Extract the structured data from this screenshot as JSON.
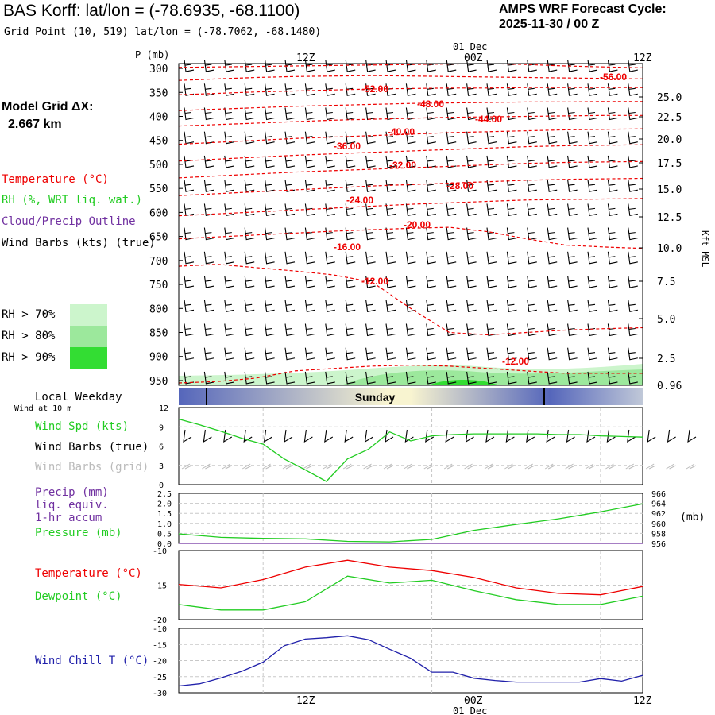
{
  "header": {
    "title": "BAS Korff:  lat/lon = (-78.6935, -68.1100)",
    "subtitle": "Grid Point (10, 519) lat/lon = (-78.7062, -68.1480)",
    "cycle_label": "AMPS WRF Forecast Cycle:",
    "cycle_value": "2025-11-30 / 00  Z"
  },
  "model_grid": {
    "label": "Model Grid ΔX:",
    "value": "2.667 km"
  },
  "legend": {
    "temperature": "Temperature (°C)",
    "rh": "RH (%, WRT liq. wat.)",
    "cloud": "Cloud/Precip Outline",
    "wind": "Wind Barbs (kts) (true)",
    "rh_levels": [
      {
        "label": "RH > 70%",
        "color": "#ccf5cc"
      },
      {
        "label": "RH > 80%",
        "color": "#9ce89c"
      },
      {
        "label": "RH > 90%",
        "color": "#33dd33"
      }
    ]
  },
  "colors": {
    "temperature": "#ee0000",
    "green": "#22cc22",
    "purple": "#7030a0",
    "grey": "#bbbbbb",
    "blue": "#2020aa",
    "weekday": "#5566bb",
    "weekday_mid": "#f8f4d0"
  },
  "time_axis": {
    "top_labels": [
      "12Z",
      "00Z",
      "12Z"
    ],
    "date_label": "01 Dec",
    "bottom_labels": [
      "12Z",
      "00Z",
      "12Z"
    ]
  },
  "weekday": {
    "label": "Local Weekday",
    "day": "Sunday",
    "wind_note": "Wind at 10 m"
  },
  "chart_data": [
    {
      "type": "line",
      "panel": "Pressure-time cross section",
      "yaxis_label": "P (mb)",
      "pressure_levels": [
        "300",
        "350",
        "400",
        "450",
        "500",
        "550",
        "600",
        "650",
        "700",
        "750",
        "800",
        "850",
        "900",
        "950"
      ],
      "right_axis_label": "Kft MSL",
      "right_ticks": [
        "25.0",
        "22.5",
        "20.0",
        "17.5",
        "15.0",
        "12.5",
        "10.0",
        "7.5",
        "5.0",
        "2.5",
        "0.96"
      ],
      "series_name": "Temperature isotherms",
      "isotherm_labels": [
        "-56.00",
        "-52.00",
        "-48.00",
        "-44.00",
        "-40.00",
        "-36.00",
        "-32.00",
        "-28.00",
        "-24.00",
        "-20.00",
        "-16.00",
        "-12.00",
        "-12.00"
      ],
      "isotherms": [
        {
          "label": "-56.00",
          "pressure": [
            298,
            297,
            296,
            295,
            294,
            293,
            292,
            291,
            290,
            292,
            295,
            297,
            299
          ]
        },
        {
          "label": "-52.00",
          "pressure": [
            325,
            322,
            319,
            317,
            316,
            315,
            316,
            317,
            318,
            319,
            320,
            321,
            322
          ]
        },
        {
          "label": "-48.00",
          "pressure": [
            355,
            352,
            349,
            347,
            345,
            343,
            342,
            341,
            341,
            340,
            340,
            340,
            340
          ]
        },
        {
          "label": "-44.00",
          "pressure": [
            388,
            385,
            382,
            379,
            377,
            375,
            373,
            372,
            371,
            370,
            370,
            369,
            369
          ]
        },
        {
          "label": "-40.00",
          "pressure": [
            420,
            417,
            414,
            411,
            408,
            406,
            404,
            402,
            401,
            400,
            399,
            398,
            398
          ]
        },
        {
          "label": "-36.00",
          "pressure": [
            458,
            454,
            450,
            446,
            443,
            440,
            437,
            434,
            432,
            430,
            428,
            427,
            426
          ]
        },
        {
          "label": "-32.00",
          "pressure": [
            493,
            489,
            485,
            481,
            478,
            475,
            472,
            469,
            466,
            463,
            461,
            460,
            459
          ]
        },
        {
          "label": "-28.00",
          "pressure": [
            528,
            524,
            520,
            516,
            513,
            510,
            507,
            504,
            501,
            498,
            496,
            495,
            494
          ]
        },
        {
          "label": "-24.00",
          "pressure": [
            565,
            561,
            557,
            553,
            549,
            545,
            542,
            539,
            536,
            533,
            531,
            530,
            529
          ]
        },
        {
          "label": "-20.00",
          "pressure": [
            607,
            603,
            599,
            595,
            591,
            587,
            583,
            580,
            577,
            574,
            573,
            572,
            571
          ]
        },
        {
          "label": "-16.00",
          "pressure": [
            655,
            651,
            647,
            643,
            639,
            636,
            633,
            631,
            640,
            655,
            668,
            672,
            675
          ]
        },
        {
          "label": "-12.00",
          "pressure": [
            712,
            708,
            715,
            722,
            730,
            745,
            800,
            850,
            855,
            850,
            845,
            842,
            840
          ]
        },
        {
          "label": "-12.00",
          "pressure": [
            955,
            952,
            945,
            930,
            925,
            920,
            918,
            920,
            925,
            930,
            935,
            935,
            935
          ]
        }
      ]
    },
    {
      "type": "line",
      "panel": "Wind speed",
      "yticks": [
        "12",
        "9",
        "6",
        "3",
        "0"
      ],
      "ylim": [
        0,
        12
      ],
      "series_label": "Wind Spd (kts)",
      "barb_label_true": "Wind Barbs (true)",
      "barb_label_grid": "Wind Barbs (grid)",
      "x_hours": [
        0,
        3,
        6,
        9,
        12,
        15,
        18,
        21,
        24,
        27,
        30,
        33,
        36,
        39,
        42,
        45,
        48,
        51,
        54,
        57,
        60,
        63,
        66
      ],
      "values": [
        10.2,
        9.3,
        8.3,
        7.2,
        6.3,
        4.0,
        2.3,
        0.5,
        4.0,
        5.5,
        8.2,
        6.8,
        7.6,
        7.8,
        7.9,
        7.9,
        7.9,
        7.9,
        7.8,
        7.8,
        7.6,
        7.5,
        7.4
      ]
    },
    {
      "type": "line",
      "panel": "Precip and pressure",
      "left_ticks": [
        "2.5",
        "2.0",
        "1.5",
        "1.0",
        "0.5",
        "0.0"
      ],
      "right_ticks": [
        "966",
        "964",
        "962",
        "960",
        "958",
        "956"
      ],
      "right_unit": "(mb)",
      "labels": [
        "Precip (mm)",
        "liq. equiv.",
        "1-hr accum",
        "Pressure (mb)"
      ],
      "x_hours": [
        0,
        6,
        12,
        18,
        24,
        30,
        36,
        42,
        48,
        54,
        60,
        66
      ],
      "pressure_mb": [
        957.9,
        957.2,
        957.0,
        956.9,
        956.4,
        956.3,
        956.8,
        958.6,
        959.8,
        960.9,
        962.3,
        963.9
      ],
      "precip_mm": [
        0,
        0,
        0,
        0,
        0,
        0,
        0,
        0,
        0,
        0,
        0,
        0
      ]
    },
    {
      "type": "line",
      "panel": "Temperature and dewpoint",
      "yticks": [
        "-10",
        "-15",
        "-20"
      ],
      "ylim": [
        -20,
        -10
      ],
      "series": [
        {
          "name": "Temperature (°C)",
          "x_hours": [
            0,
            6,
            12,
            18,
            24,
            30,
            36,
            42,
            48,
            54,
            60,
            66
          ],
          "values": [
            -14.9,
            -15.4,
            -14.2,
            -12.4,
            -11.4,
            -12.4,
            -12.9,
            -13.9,
            -15.4,
            -16.2,
            -16.4,
            -15.2
          ]
        },
        {
          "name": "Dewpoint (°C)",
          "x_hours": [
            0,
            6,
            12,
            18,
            24,
            30,
            36,
            42,
            48,
            54,
            60,
            66
          ],
          "values": [
            -17.8,
            -18.6,
            -18.6,
            -17.4,
            -13.7,
            -14.7,
            -14.3,
            -15.8,
            -17.1,
            -17.8,
            -17.8,
            -16.6
          ]
        }
      ]
    },
    {
      "type": "line",
      "panel": "Wind chill",
      "yticks": [
        "-10",
        "-15",
        "-20",
        "-25",
        "-30"
      ],
      "ylim": [
        -30,
        -10
      ],
      "series_label": "Wind Chill T (°C)",
      "x_hours": [
        0,
        3,
        6,
        9,
        12,
        15,
        18,
        21,
        24,
        27,
        30,
        33,
        36,
        39,
        42,
        45,
        48,
        51,
        54,
        57,
        60,
        63,
        66
      ],
      "values": [
        -27.9,
        -27.2,
        -25.4,
        -23.3,
        -20.5,
        -15.4,
        -13.3,
        -12.9,
        -12.3,
        -13.5,
        -16.5,
        -19.3,
        -23.6,
        -23.6,
        -25.5,
        -26.2,
        -26.7,
        -26.7,
        -26.7,
        -26.7,
        -25.6,
        -26.4,
        -24.6
      ]
    }
  ]
}
